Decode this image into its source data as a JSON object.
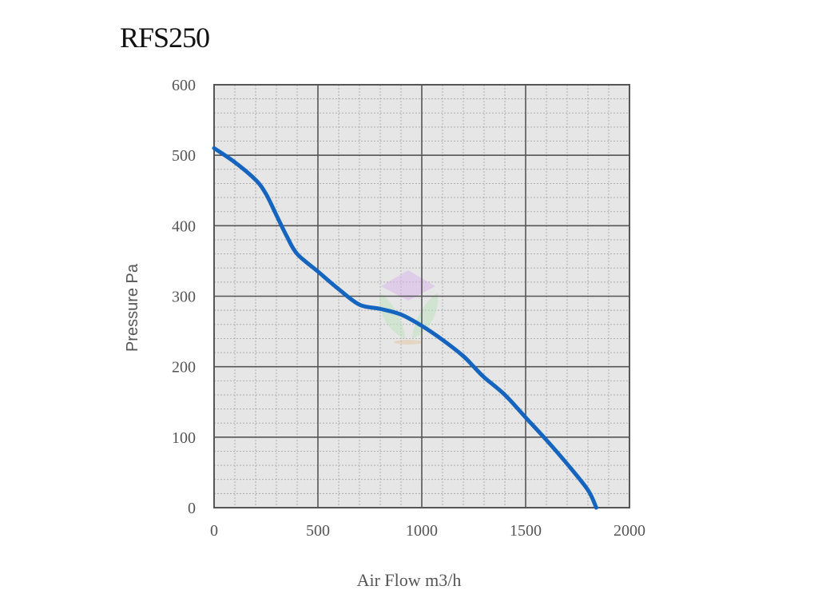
{
  "chart_data": {
    "type": "line",
    "title": "RFS250",
    "xlabel": "Air Flow m3/h",
    "ylabel": "Pressure Pa",
    "xlim": [
      0,
      2000
    ],
    "ylim": [
      0,
      600
    ],
    "x_ticks": [
      "0",
      "500",
      "1000",
      "1500",
      "2000"
    ],
    "y_ticks": [
      "0",
      "100",
      "200",
      "300",
      "400",
      "500",
      "600"
    ],
    "grid": true,
    "series": [
      {
        "color": "#1565c0",
        "x": [
          0,
          100,
          200,
          250,
          300,
          350,
          400,
          500,
          600,
          700,
          800,
          900,
          1000,
          1100,
          1200,
          1250,
          1300,
          1400,
          1500,
          1600,
          1700,
          1800,
          1840
        ],
        "y": [
          510,
          490,
          465,
          445,
          415,
          385,
          360,
          335,
          310,
          288,
          282,
          274,
          258,
          238,
          215,
          200,
          185,
          160,
          128,
          96,
          62,
          25,
          0
        ]
      }
    ]
  },
  "colors": {
    "plot_background": "#e6e6e6",
    "major_grid": "#555555",
    "minor_grid": "#a8a8a8",
    "curve": "#1565c0"
  }
}
